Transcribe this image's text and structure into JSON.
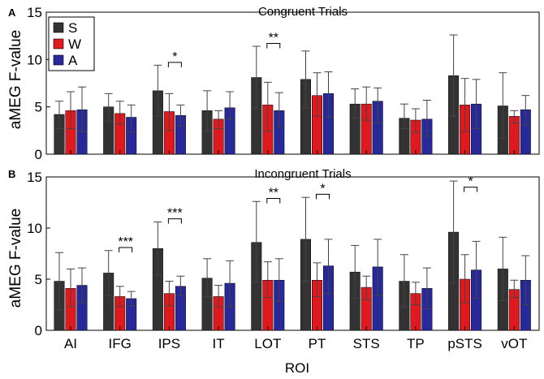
{
  "colors": {
    "S": "#333333",
    "W": "#e0191f",
    "A": "#27289a"
  },
  "x_label": "ROI",
  "chart_data": [
    {
      "panel_letter": "A",
      "type": "bar",
      "title": "Congruent Trials",
      "xlabel": "",
      "ylabel": "aMEG F-value",
      "ylim": [
        0,
        15
      ],
      "yticks": [
        "0",
        "5",
        "10",
        "15"
      ],
      "categories": [
        "AI",
        "IFG",
        "IPS",
        "IT",
        "LOT",
        "PT",
        "STS",
        "TP",
        "pSTS",
        "vOT"
      ],
      "legend": [
        "S",
        "W",
        "A"
      ],
      "series": [
        {
          "name": "S",
          "values": [
            4.2,
            5.0,
            6.7,
            4.6,
            8.1,
            7.9,
            5.3,
            3.8,
            8.3,
            5.1
          ],
          "err_low": [
            2.7,
            3.5,
            4.0,
            2.4,
            4.8,
            4.9,
            3.8,
            2.7,
            4.0,
            1.7
          ],
          "err_high": [
            5.6,
            6.4,
            9.4,
            6.7,
            11.4,
            10.9,
            6.9,
            5.3,
            12.6,
            8.6
          ]
        },
        {
          "name": "W",
          "values": [
            4.6,
            4.3,
            4.5,
            3.7,
            5.2,
            6.2,
            5.3,
            3.6,
            5.2,
            4.0
          ],
          "err_low": [
            2.7,
            3.2,
            2.5,
            2.7,
            2.4,
            4.0,
            3.6,
            2.3,
            2.4,
            3.3
          ],
          "err_high": [
            6.6,
            5.6,
            6.4,
            4.6,
            7.6,
            8.6,
            7.1,
            4.8,
            8.0,
            4.6
          ]
        },
        {
          "name": "A",
          "values": [
            4.7,
            3.9,
            4.1,
            4.9,
            4.6,
            6.4,
            5.6,
            3.7,
            5.3,
            4.7
          ],
          "err_low": [
            2.4,
            2.3,
            3.0,
            3.7,
            2.8,
            3.9,
            3.3,
            1.9,
            2.7,
            3.1
          ],
          "err_high": [
            7.1,
            5.2,
            5.2,
            6.6,
            6.5,
            8.7,
            7.0,
            5.7,
            7.9,
            6.2
          ]
        }
      ],
      "significance": [
        {
          "category": "IPS",
          "label": "*"
        },
        {
          "category": "LOT",
          "label": "**"
        }
      ]
    },
    {
      "panel_letter": "B",
      "type": "bar",
      "title": "Incongruent Trials",
      "xlabel": "ROI",
      "ylabel": "aMEG F-value",
      "ylim": [
        0,
        15
      ],
      "yticks": [
        "0",
        "5",
        "10",
        "15"
      ],
      "categories": [
        "AI",
        "IFG",
        "IPS",
        "IT",
        "LOT",
        "PT",
        "STS",
        "TP",
        "pSTS",
        "vOT"
      ],
      "series": [
        {
          "name": "S",
          "values": [
            4.8,
            5.6,
            8.0,
            5.1,
            8.6,
            8.9,
            5.7,
            4.8,
            9.6,
            6.0
          ],
          "err_low": [
            2.0,
            3.4,
            5.4,
            3.3,
            4.7,
            4.8,
            3.1,
            2.3,
            4.6,
            2.9
          ],
          "err_high": [
            7.6,
            7.8,
            10.6,
            7.0,
            12.6,
            13.0,
            8.3,
            7.4,
            14.6,
            9.1
          ]
        },
        {
          "name": "W",
          "values": [
            4.1,
            3.3,
            3.6,
            3.3,
            4.9,
            4.9,
            4.2,
            3.6,
            5.0,
            4.0
          ],
          "err_low": [
            2.3,
            2.3,
            2.4,
            2.3,
            3.2,
            3.3,
            3.0,
            2.5,
            2.7,
            3.2
          ],
          "err_high": [
            6.0,
            4.3,
            4.8,
            4.4,
            6.7,
            6.6,
            5.3,
            4.7,
            7.4,
            4.9
          ]
        },
        {
          "name": "A",
          "values": [
            4.4,
            3.1,
            4.3,
            4.6,
            4.9,
            6.3,
            6.2,
            4.1,
            5.9,
            4.9
          ],
          "err_low": [
            2.7,
            2.4,
            3.4,
            2.3,
            2.8,
            3.6,
            3.4,
            2.1,
            3.1,
            2.5
          ],
          "err_high": [
            6.1,
            3.8,
            5.3,
            6.8,
            7.0,
            8.9,
            8.9,
            6.1,
            8.7,
            7.3
          ]
        }
      ],
      "significance": [
        {
          "category": "IFG",
          "label": "***"
        },
        {
          "category": "IPS",
          "label": "***"
        },
        {
          "category": "LOT",
          "label": "**"
        },
        {
          "category": "PT",
          "label": "*"
        },
        {
          "category": "pSTS",
          "label": "*"
        }
      ]
    }
  ]
}
